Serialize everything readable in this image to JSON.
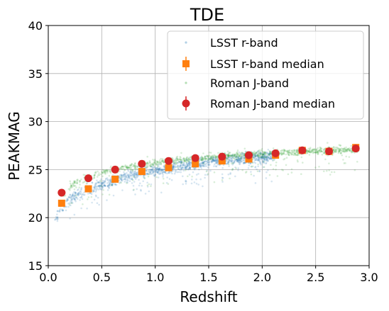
{
  "chart_data": {
    "type": "scatter",
    "title": "TDE",
    "xlabel": "Redshift",
    "ylabel": "PEAKMAG",
    "xlim": [
      0.0,
      3.0
    ],
    "ylim": [
      15,
      40
    ],
    "xticks": [
      "0.0",
      "0.5",
      "1.0",
      "1.5",
      "2.0",
      "2.5",
      "3.0"
    ],
    "yticks": [
      "15",
      "20",
      "25",
      "30",
      "35",
      "40"
    ],
    "grid": true,
    "legend_position": "top-right",
    "series": [
      {
        "name": "LSST r-band",
        "kind": "scatter-cloud",
        "color": "#1f77b4",
        "trend": [
          [
            0.05,
            19.5
          ],
          [
            0.12,
            21.0
          ],
          [
            0.25,
            22.3
          ],
          [
            0.37,
            22.9
          ],
          [
            0.5,
            23.4
          ],
          [
            0.62,
            23.9
          ],
          [
            0.75,
            24.3
          ],
          [
            0.87,
            24.6
          ],
          [
            1.0,
            24.9
          ],
          [
            1.12,
            25.1
          ],
          [
            1.25,
            25.4
          ],
          [
            1.37,
            25.6
          ],
          [
            1.5,
            25.8
          ],
          [
            1.62,
            25.95
          ],
          [
            1.75,
            26.1
          ],
          [
            1.87,
            26.2
          ],
          [
            2.0,
            26.35
          ],
          [
            2.12,
            26.45
          ]
        ]
      },
      {
        "name": "LSST r-band median",
        "kind": "errorbar",
        "color": "#ff7f0e",
        "marker": "square",
        "x": [
          0.125,
          0.375,
          0.625,
          0.875,
          1.125,
          1.375,
          1.625,
          1.875,
          2.125,
          2.375,
          2.625,
          2.875
        ],
        "y": [
          21.5,
          23.0,
          24.0,
          24.8,
          25.2,
          25.6,
          25.9,
          26.1,
          26.5,
          27.0,
          26.9,
          27.3
        ],
        "yerr": [
          0.3,
          0.3,
          0.25,
          0.2,
          0.2,
          0.2,
          0.15,
          0.15,
          0.15,
          0.15,
          0.15,
          0.2
        ]
      },
      {
        "name": "Roman J-band",
        "kind": "scatter-cloud",
        "color": "#2ca02c",
        "trend": [
          [
            0.1,
            22.0
          ],
          [
            0.25,
            23.6
          ],
          [
            0.37,
            24.2
          ],
          [
            0.5,
            24.7
          ],
          [
            0.62,
            25.0
          ],
          [
            0.75,
            25.3
          ],
          [
            0.87,
            25.5
          ],
          [
            1.0,
            25.7
          ],
          [
            1.12,
            25.9
          ],
          [
            1.25,
            26.0
          ],
          [
            1.37,
            26.15
          ],
          [
            1.5,
            26.3
          ],
          [
            1.62,
            26.4
          ],
          [
            1.75,
            26.5
          ],
          [
            1.87,
            26.55
          ],
          [
            2.0,
            26.65
          ],
          [
            2.25,
            26.8
          ],
          [
            2.5,
            26.9
          ],
          [
            2.75,
            27.0
          ],
          [
            2.9,
            27.1
          ]
        ]
      },
      {
        "name": "Roman J-band median",
        "kind": "errorbar",
        "color": "#d62728",
        "marker": "circle",
        "x": [
          0.125,
          0.375,
          0.625,
          0.875,
          1.125,
          1.375,
          1.625,
          1.875,
          2.125,
          2.375,
          2.625,
          2.875
        ],
        "y": [
          22.6,
          24.1,
          25.0,
          25.6,
          25.9,
          26.2,
          26.35,
          26.5,
          26.7,
          27.0,
          26.9,
          27.2
        ],
        "yerr": [
          0.3,
          0.25,
          0.2,
          0.2,
          0.15,
          0.15,
          0.15,
          0.15,
          0.15,
          0.15,
          0.15,
          0.2
        ]
      }
    ]
  }
}
